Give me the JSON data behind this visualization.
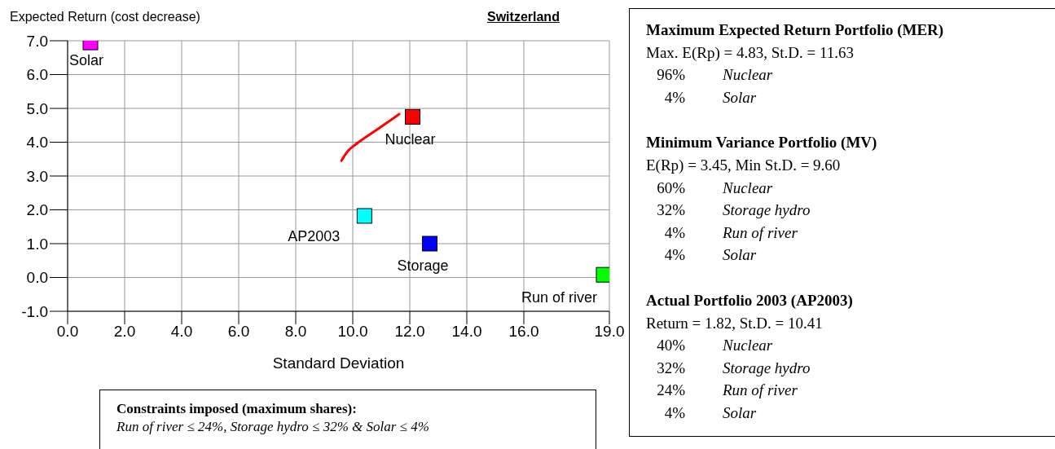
{
  "chart_data": {
    "type": "scatter",
    "title": "Switzerland",
    "xlabel": "Standard Deviation",
    "ylabel": "Expected Return (cost decrease)",
    "xlim": [
      0,
      19
    ],
    "ylim": [
      -1,
      7
    ],
    "xticks": [
      {
        "value": 0,
        "label": "0.0"
      },
      {
        "value": 2,
        "label": "2.0"
      },
      {
        "value": 4,
        "label": "4.0"
      },
      {
        "value": 6,
        "label": "6.0"
      },
      {
        "value": 8,
        "label": "8.0"
      },
      {
        "value": 10,
        "label": "10.0"
      },
      {
        "value": 12,
        "label": "12.0"
      },
      {
        "value": 14,
        "label": "14.0"
      },
      {
        "value": 16,
        "label": "16.0"
      },
      {
        "value": 19,
        "label": "19.0"
      }
    ],
    "yticks": [
      {
        "value": -1,
        "label": "-1.0"
      },
      {
        "value": 0,
        "label": "0.0"
      },
      {
        "value": 1,
        "label": "1.0"
      },
      {
        "value": 2,
        "label": "2.0"
      },
      {
        "value": 3,
        "label": "3.0"
      },
      {
        "value": 4,
        "label": "4.0"
      },
      {
        "value": 5,
        "label": "5.0"
      },
      {
        "value": 6,
        "label": "6.0"
      },
      {
        "value": 7,
        "label": "7.0"
      }
    ],
    "grid": true,
    "marker": "square",
    "series": [
      {
        "name": "Solar",
        "color": "#ff00ff",
        "x": [
          0.8
        ],
        "values": [
          6.95
        ]
      },
      {
        "name": "Nuclear",
        "color": "#ff0000",
        "x": [
          12.1
        ],
        "values": [
          4.75
        ]
      },
      {
        "name": "AP2003",
        "color": "#00ffff",
        "x": [
          10.41
        ],
        "values": [
          1.82
        ]
      },
      {
        "name": "Storage",
        "color": "#0000ff",
        "x": [
          12.7
        ],
        "values": [
          1.0
        ]
      },
      {
        "name": "Run of river",
        "color": "#00ff00",
        "x": [
          18.8
        ],
        "values": [
          0.08
        ]
      },
      {
        "type": "line",
        "color": "#ff0000",
        "marker": "none",
        "x": [
          9.6,
          9.83,
          10.11,
          10.81,
          11.63
        ],
        "values": [
          3.45,
          3.74,
          3.94,
          4.35,
          4.83
        ]
      }
    ],
    "annotations": [
      "Maximum Expected Return Portfolio (MER)",
      "Max. E(Rp) = 4.83,  St.D. = 11.63",
      "96% Nuclear",
      "4% Solar",
      "Minimum Variance Portfolio (MV)",
      "E(Rp) = 3.45, Min St.D. = 9.60",
      "60% Nuclear",
      "32% Storage hydro",
      "4% Run of river",
      "4% Solar",
      "Actual Portfolio 2003 (AP2003)",
      "Return = 1.82, St.D. = 10.41",
      "40% Nuclear",
      "32% Storage hydro",
      "24% Run of river",
      "4% Solar",
      "Constraints imposed (maximum shares):",
      "Run of river ≤ 24%, Storage hydro ≤ 32% & Solar ≤ 4%"
    ]
  }
}
